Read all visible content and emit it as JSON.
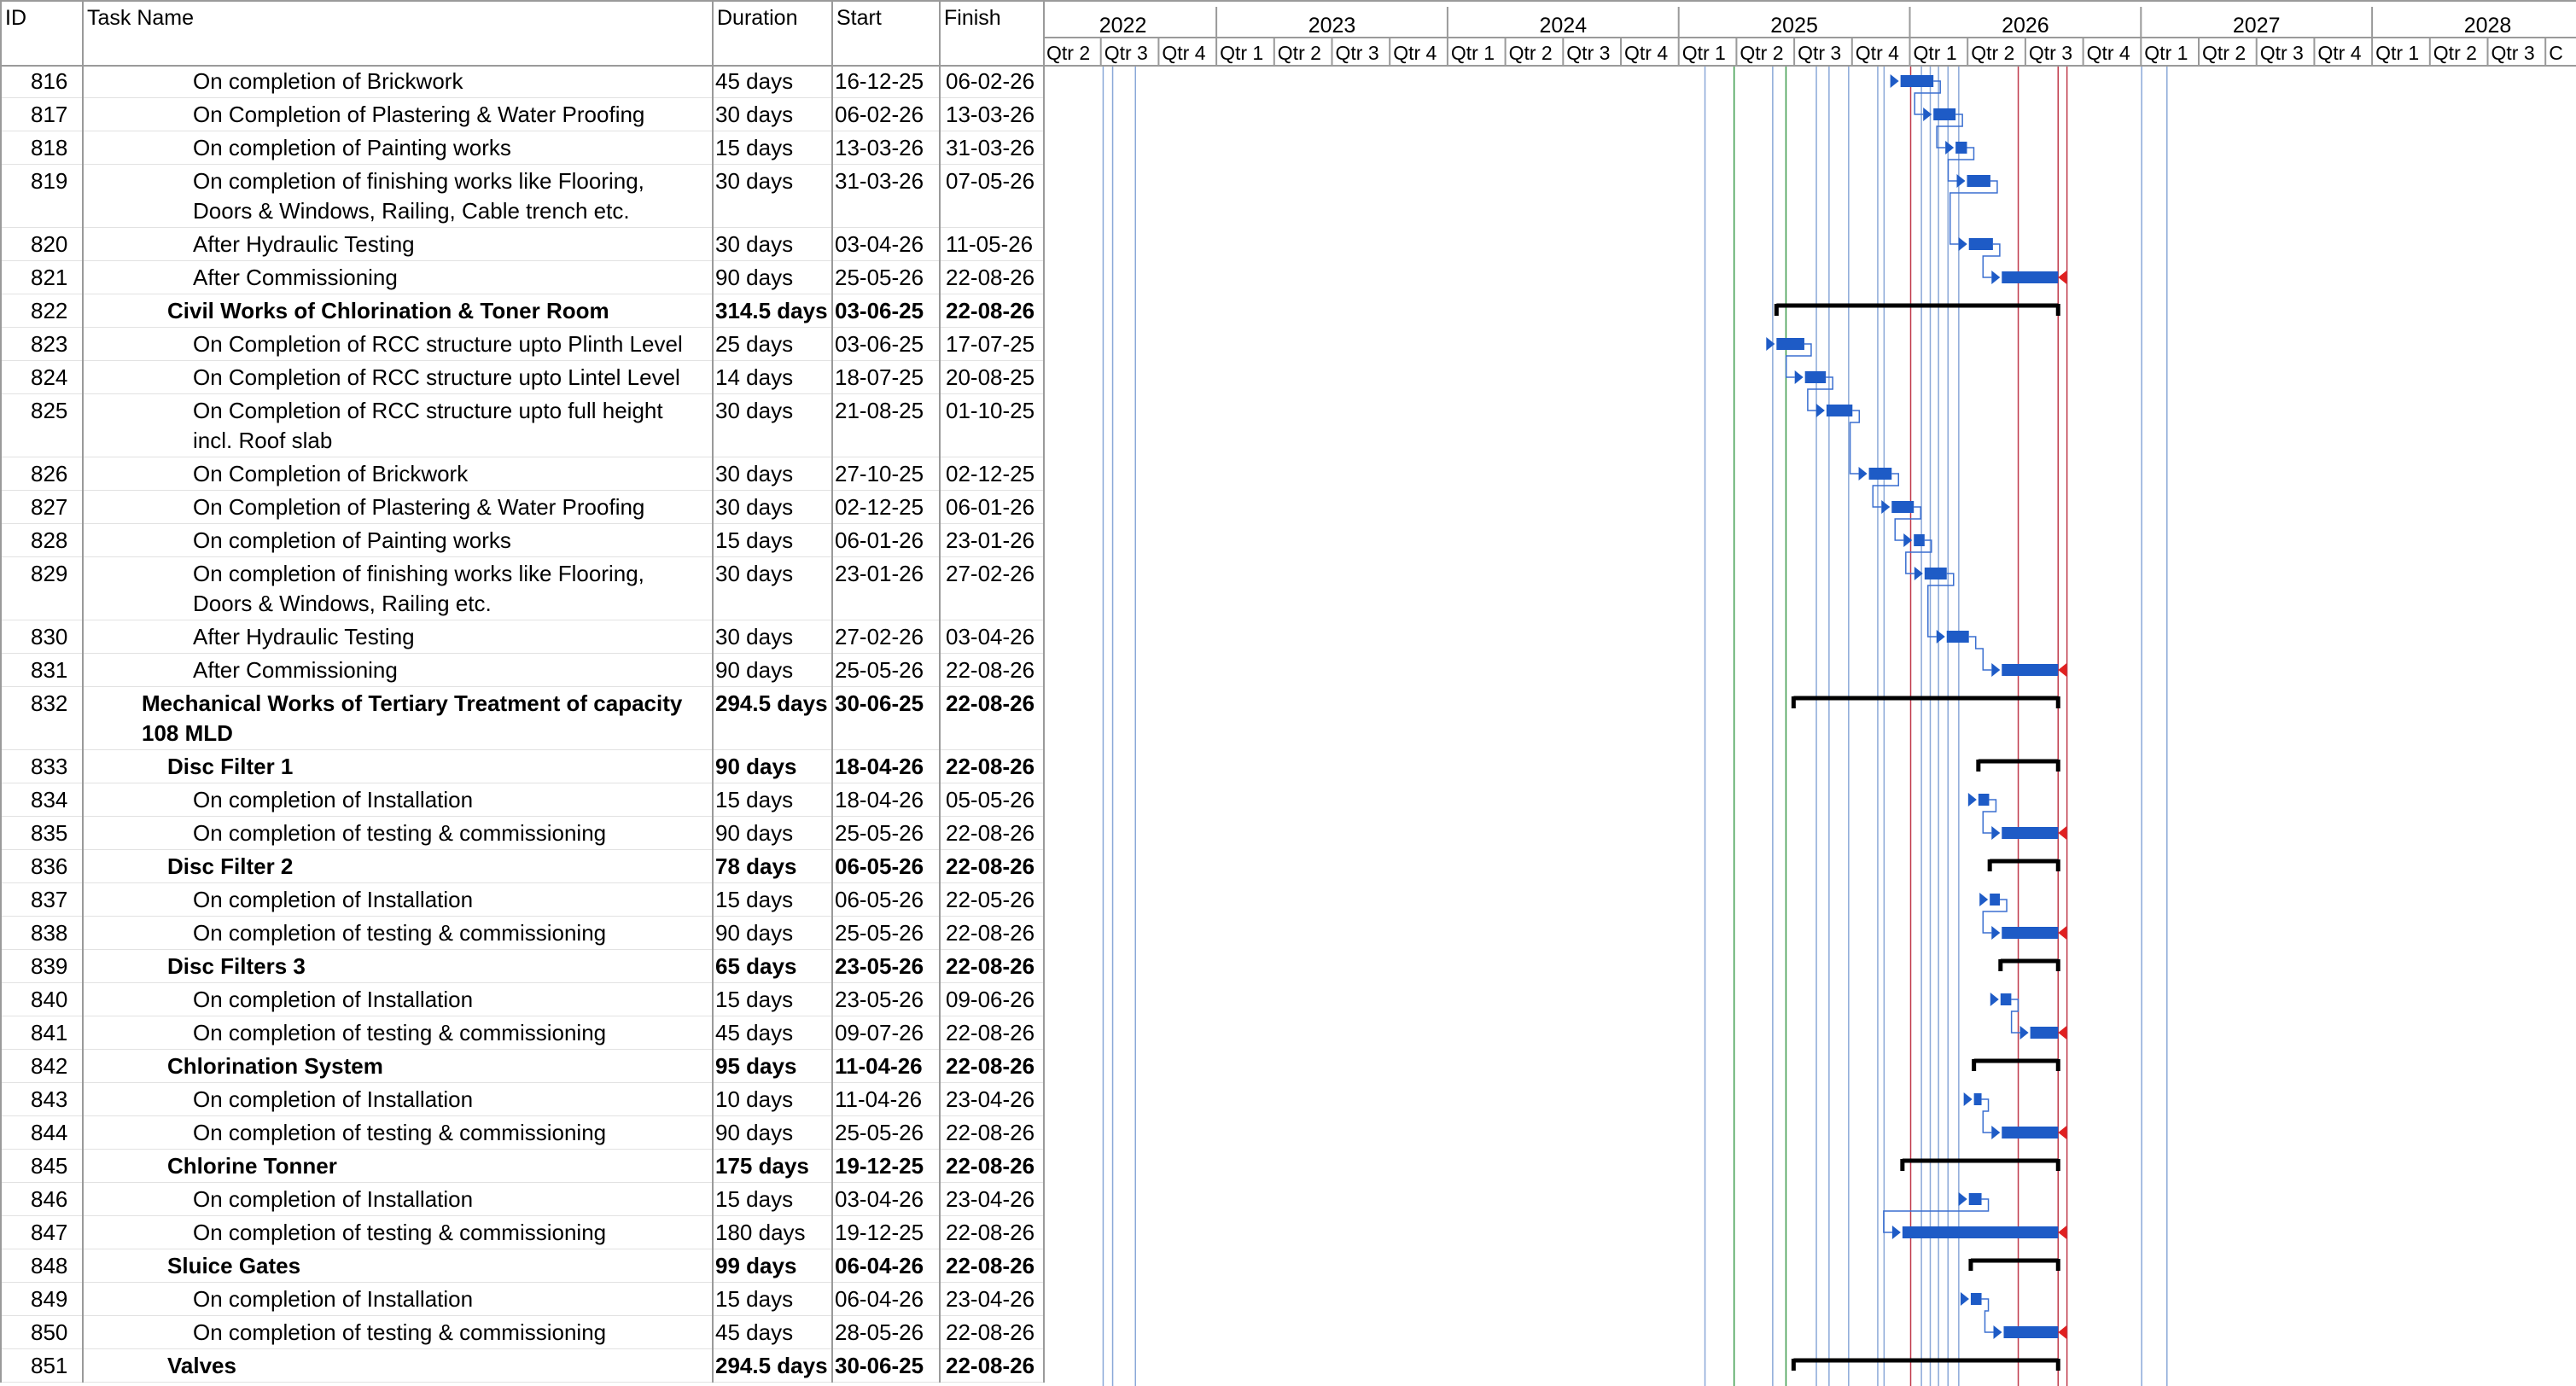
{
  "columns": {
    "id": "ID",
    "task_name": "Task Name",
    "duration": "Duration",
    "start": "Start",
    "finish": "Finish"
  },
  "timescale": {
    "years": [
      "2022",
      "2023",
      "2024",
      "2025",
      "2026",
      "2027",
      "2028"
    ],
    "quarters": [
      "Qtr 2",
      "Qtr 3",
      "Qtr 4",
      "Qtr 1",
      "Qtr 2",
      "Qtr 3",
      "Qtr 4",
      "Qtr 1",
      "Qtr 2",
      "Qtr 3",
      "Qtr 4",
      "Qtr 1",
      "Qtr 2",
      "Qtr 3",
      "Qtr 4",
      "Qtr 1",
      "Qtr 2",
      "Qtr 3",
      "Qtr 4",
      "Qtr 1",
      "Qtr 2",
      "Qtr 3",
      "Qtr 4",
      "Qtr 1",
      "Qtr 2",
      "Qtr 3",
      "C"
    ]
  },
  "colors": {
    "task_bar": "#1e5bc6",
    "summary_bar": "#000000",
    "deadline_marker": "#e02020",
    "link_line": "#3a6fd0",
    "grid_line": "#9a9a9a",
    "vertical_red": "#c0394a",
    "vertical_green": "#3a9a4a",
    "vertical_blue": "#8aa8d8"
  },
  "tasks": [
    {
      "id": "816",
      "name_lines": [
        "On completion of Brickwork"
      ],
      "indent": 2,
      "bold": false,
      "duration": "45 days",
      "start": "16-12-25",
      "finish": "06-02-26"
    },
    {
      "id": "817",
      "name_lines": [
        "On Completion of Plastering & Water Proofing"
      ],
      "indent": 2,
      "bold": false,
      "duration": "30 days",
      "start": "06-02-26",
      "finish": "13-03-26"
    },
    {
      "id": "818",
      "name_lines": [
        "On completion of Painting works"
      ],
      "indent": 2,
      "bold": false,
      "duration": "15 days",
      "start": "13-03-26",
      "finish": "31-03-26"
    },
    {
      "id": "819",
      "name_lines": [
        "On completion of finishing works like Flooring,",
        "Doors & Windows, Railing, Cable trench etc."
      ],
      "indent": 2,
      "bold": false,
      "duration": "30 days",
      "start": "31-03-26",
      "finish": "07-05-26"
    },
    {
      "id": "820",
      "name_lines": [
        "After Hydraulic Testing"
      ],
      "indent": 2,
      "bold": false,
      "duration": "30 days",
      "start": "03-04-26",
      "finish": "11-05-26"
    },
    {
      "id": "821",
      "name_lines": [
        "After Commissioning"
      ],
      "indent": 2,
      "bold": false,
      "duration": "90 days",
      "start": "25-05-26",
      "finish": "22-08-26"
    },
    {
      "id": "822",
      "name_lines": [
        "Civil Works of Chlorination & Toner Room"
      ],
      "indent": 1,
      "bold": true,
      "duration": "314.5 days",
      "start": "03-06-25",
      "finish": "22-08-26"
    },
    {
      "id": "823",
      "name_lines": [
        "On Completion of RCC structure upto Plinth Level"
      ],
      "indent": 2,
      "bold": false,
      "duration": "25 days",
      "start": "03-06-25",
      "finish": "17-07-25"
    },
    {
      "id": "824",
      "name_lines": [
        "On Completion of RCC structure upto Lintel Level"
      ],
      "indent": 2,
      "bold": false,
      "duration": "14 days",
      "start": "18-07-25",
      "finish": "20-08-25"
    },
    {
      "id": "825",
      "name_lines": [
        "On Completion of RCC structure upto full height",
        "incl. Roof slab"
      ],
      "indent": 2,
      "bold": false,
      "duration": "30 days",
      "start": "21-08-25",
      "finish": "01-10-25"
    },
    {
      "id": "826",
      "name_lines": [
        "On Completion of Brickwork"
      ],
      "indent": 2,
      "bold": false,
      "duration": "30 days",
      "start": "27-10-25",
      "finish": "02-12-25"
    },
    {
      "id": "827",
      "name_lines": [
        "On Completion of Plastering & Water Proofing"
      ],
      "indent": 2,
      "bold": false,
      "duration": "30 days",
      "start": "02-12-25",
      "finish": "06-01-26"
    },
    {
      "id": "828",
      "name_lines": [
        "On completion of Painting works"
      ],
      "indent": 2,
      "bold": false,
      "duration": "15 days",
      "start": "06-01-26",
      "finish": "23-01-26"
    },
    {
      "id": "829",
      "name_lines": [
        "On completion of finishing works like Flooring,",
        "Doors & Windows, Railing etc."
      ],
      "indent": 2,
      "bold": false,
      "duration": "30 days",
      "start": "23-01-26",
      "finish": "27-02-26"
    },
    {
      "id": "830",
      "name_lines": [
        "After Hydraulic Testing"
      ],
      "indent": 2,
      "bold": false,
      "duration": "30 days",
      "start": "27-02-26",
      "finish": "03-04-26"
    },
    {
      "id": "831",
      "name_lines": [
        "After Commissioning"
      ],
      "indent": 2,
      "bold": false,
      "duration": "90 days",
      "start": "25-05-26",
      "finish": "22-08-26"
    },
    {
      "id": "832",
      "name_lines": [
        "Mechanical Works of Tertiary Treatment of capacity",
        "108 MLD"
      ],
      "indent": 0,
      "bold": true,
      "duration": "294.5 days",
      "start": "30-06-25",
      "finish": "22-08-26"
    },
    {
      "id": "833",
      "name_lines": [
        "Disc Filter 1"
      ],
      "indent": 1,
      "bold": true,
      "duration": "90 days",
      "start": "18-04-26",
      "finish": "22-08-26"
    },
    {
      "id": "834",
      "name_lines": [
        "On completion of Installation"
      ],
      "indent": 2,
      "bold": false,
      "duration": "15 days",
      "start": "18-04-26",
      "finish": "05-05-26"
    },
    {
      "id": "835",
      "name_lines": [
        "On completion of testing & commissioning"
      ],
      "indent": 2,
      "bold": false,
      "duration": "90 days",
      "start": "25-05-26",
      "finish": "22-08-26"
    },
    {
      "id": "836",
      "name_lines": [
        "Disc Filter 2"
      ],
      "indent": 1,
      "bold": true,
      "duration": "78 days",
      "start": "06-05-26",
      "finish": "22-08-26"
    },
    {
      "id": "837",
      "name_lines": [
        "On completion of Installation"
      ],
      "indent": 2,
      "bold": false,
      "duration": "15 days",
      "start": "06-05-26",
      "finish": "22-05-26"
    },
    {
      "id": "838",
      "name_lines": [
        "On completion of testing & commissioning"
      ],
      "indent": 2,
      "bold": false,
      "duration": "90 days",
      "start": "25-05-26",
      "finish": "22-08-26"
    },
    {
      "id": "839",
      "name_lines": [
        "Disc Filters 3"
      ],
      "indent": 1,
      "bold": true,
      "duration": "65 days",
      "start": "23-05-26",
      "finish": "22-08-26"
    },
    {
      "id": "840",
      "name_lines": [
        "On completion of Installation"
      ],
      "indent": 2,
      "bold": false,
      "duration": "15 days",
      "start": "23-05-26",
      "finish": "09-06-26"
    },
    {
      "id": "841",
      "name_lines": [
        "On completion of testing & commissioning"
      ],
      "indent": 2,
      "bold": false,
      "duration": "45 days",
      "start": "09-07-26",
      "finish": "22-08-26"
    },
    {
      "id": "842",
      "name_lines": [
        "Chlorination System"
      ],
      "indent": 1,
      "bold": true,
      "duration": "95 days",
      "start": "11-04-26",
      "finish": "22-08-26"
    },
    {
      "id": "843",
      "name_lines": [
        "On completion of Installation"
      ],
      "indent": 2,
      "bold": false,
      "duration": "10 days",
      "start": "11-04-26",
      "finish": "23-04-26"
    },
    {
      "id": "844",
      "name_lines": [
        "On completion of testing & commissioning"
      ],
      "indent": 2,
      "bold": false,
      "duration": "90 days",
      "start": "25-05-26",
      "finish": "22-08-26"
    },
    {
      "id": "845",
      "name_lines": [
        "Chlorine Tonner"
      ],
      "indent": 1,
      "bold": true,
      "duration": "175 days",
      "start": "19-12-25",
      "finish": "22-08-26"
    },
    {
      "id": "846",
      "name_lines": [
        "On completion of Installation"
      ],
      "indent": 2,
      "bold": false,
      "duration": "15 days",
      "start": "03-04-26",
      "finish": "23-04-26"
    },
    {
      "id": "847",
      "name_lines": [
        "On completion of testing & commissioning"
      ],
      "indent": 2,
      "bold": false,
      "duration": "180 days",
      "start": "19-12-25",
      "finish": "22-08-26"
    },
    {
      "id": "848",
      "name_lines": [
        "Sluice Gates"
      ],
      "indent": 1,
      "bold": true,
      "duration": "99 days",
      "start": "06-04-26",
      "finish": "22-08-26"
    },
    {
      "id": "849",
      "name_lines": [
        "On completion of Installation"
      ],
      "indent": 2,
      "bold": false,
      "duration": "15 days",
      "start": "06-04-26",
      "finish": "23-04-26"
    },
    {
      "id": "850",
      "name_lines": [
        "On completion of testing & commissioning"
      ],
      "indent": 2,
      "bold": false,
      "duration": "45 days",
      "start": "28-05-26",
      "finish": "22-08-26"
    },
    {
      "id": "851",
      "name_lines": [
        "Valves"
      ],
      "indent": 1,
      "bold": true,
      "duration": "294.5 days",
      "start": "30-06-25",
      "finish": "22-08-26"
    }
  ]
}
